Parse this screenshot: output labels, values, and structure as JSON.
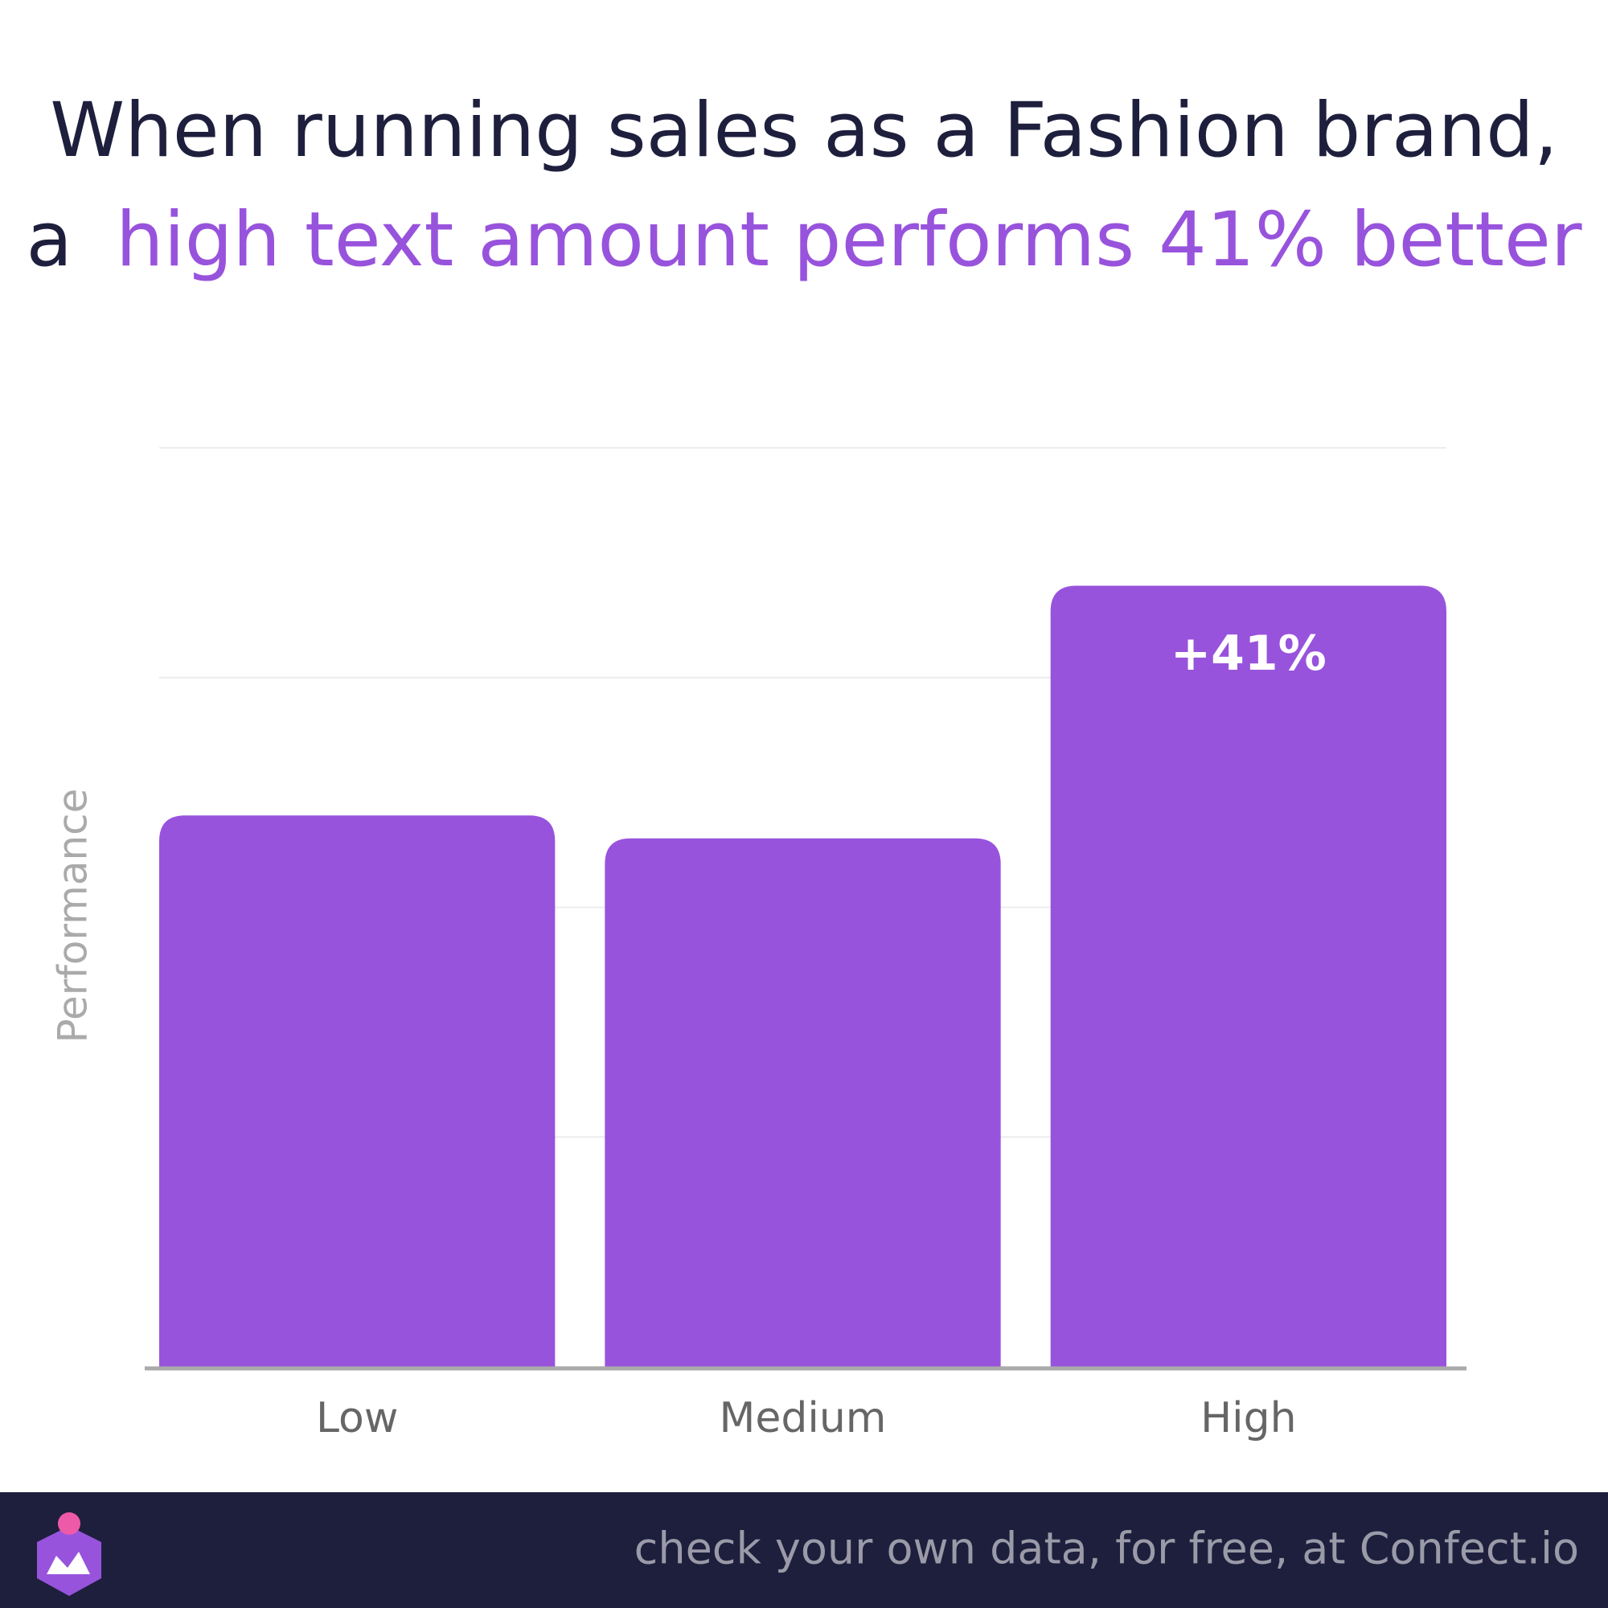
{
  "chart_data": {
    "type": "bar",
    "title": [
      "When running sales as a Fashion brand,",
      "a",
      "high text amount performs 41% better"
    ],
    "title_color": "#1e1f3d",
    "highlight_color": "#9853dc",
    "y_label": "Performance",
    "categories": [
      "Low",
      "Medium",
      "High"
    ],
    "values": [
      2.4,
      2.3,
      3.4
    ],
    "color": "#9853dc",
    "annotation": {
      "category": 2,
      "text": "+41%"
    },
    "ylim": [
      0,
      4
    ],
    "yticks": [
      0,
      1,
      2,
      3,
      4
    ],
    "grid": true,
    "footer": "check your own data, for free, at Confect.io"
  }
}
